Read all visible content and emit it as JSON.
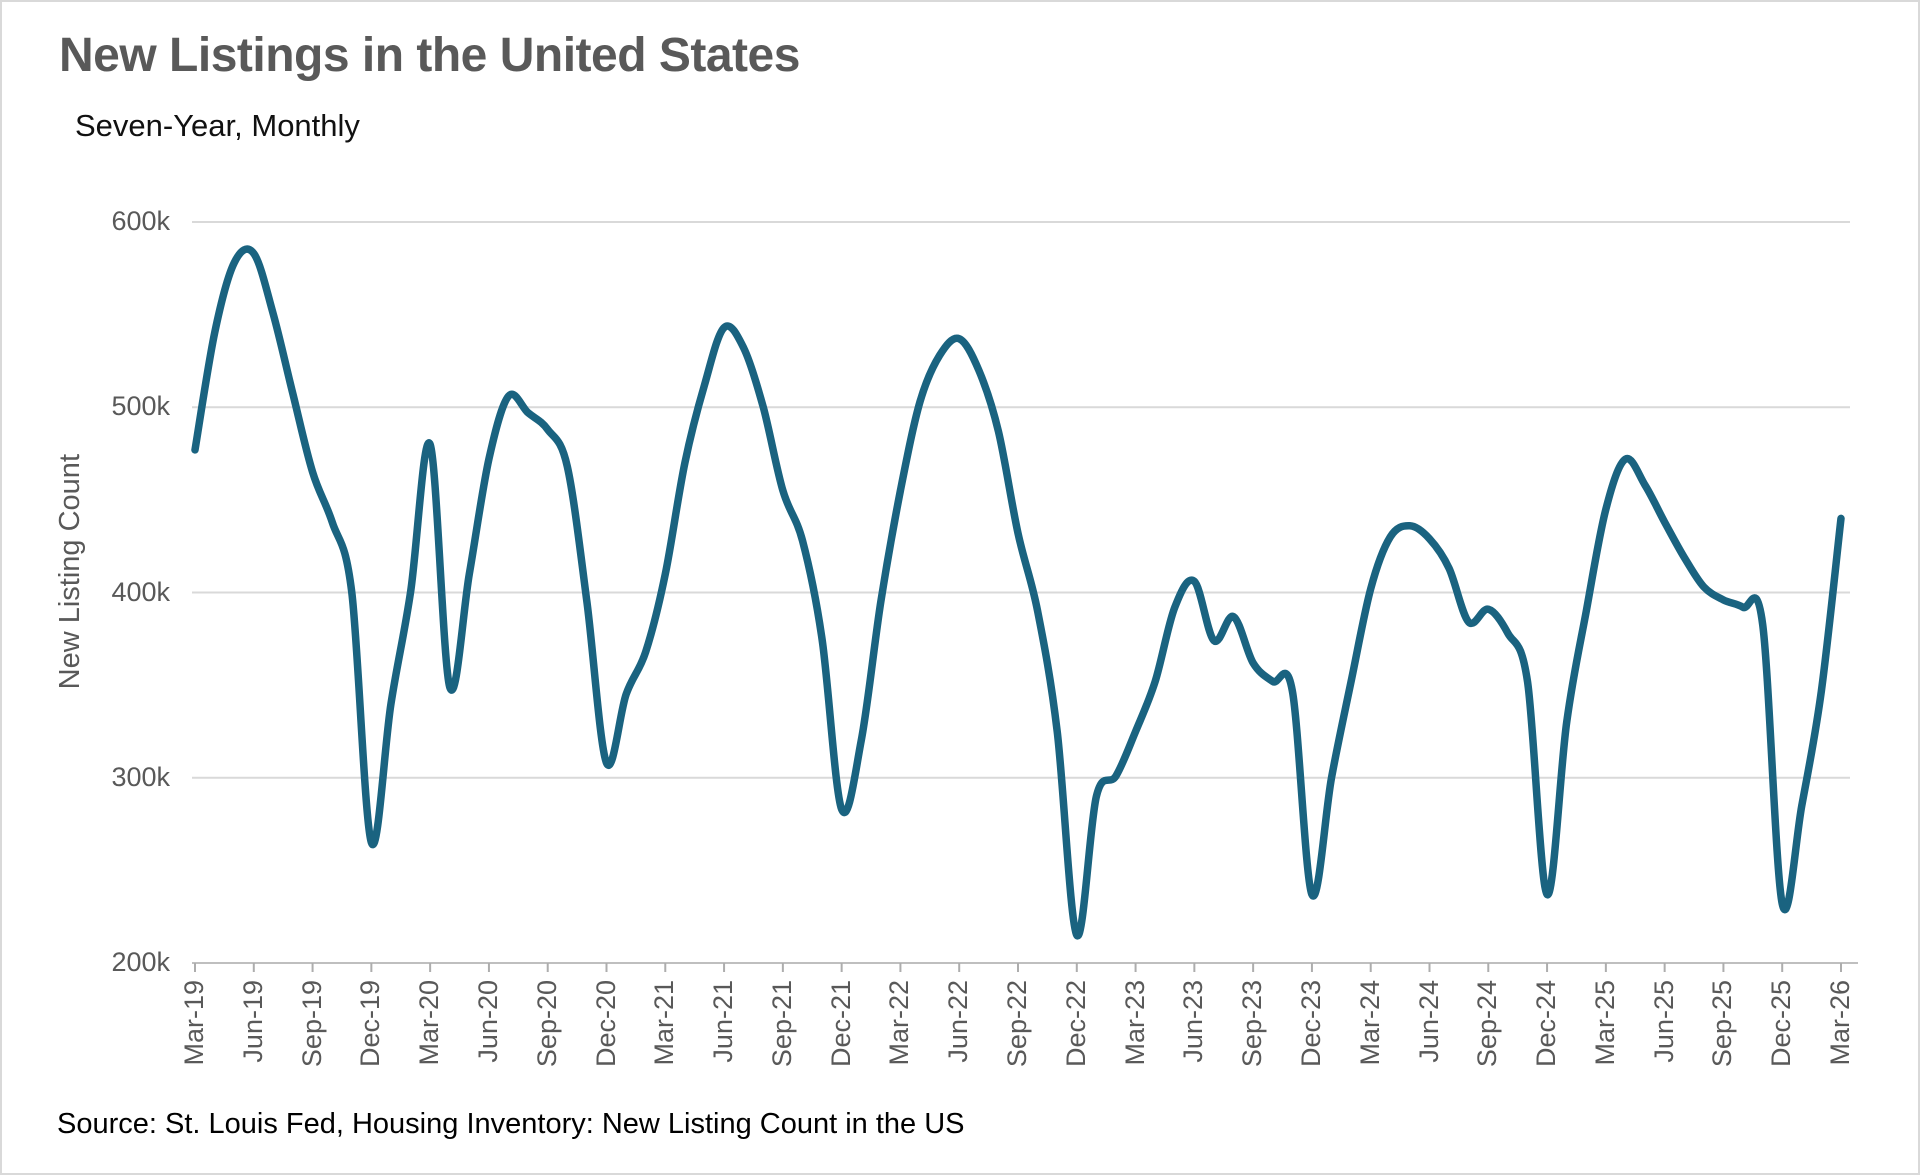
{
  "header": {
    "title": "New Listings in the United States",
    "subtitle": "Seven-Year, Monthly"
  },
  "footer": {
    "source": "Source: St. Louis Fed, Housing Inventory: New Listing Count in the US"
  },
  "chart_data": {
    "type": "line",
    "title": "New Listings in the United States",
    "subtitle": "Seven-Year, Monthly",
    "ylabel": "New Listing Count",
    "ylim": [
      200000,
      620000
    ],
    "grid": "horizontal-only",
    "legend": "none",
    "line_color": "#1A6380",
    "gridline_color": "#D9D9D9",
    "axis_color": "#BFBFBF",
    "tick_color": "#ADADAD",
    "label_color": "#595959",
    "y_tick_labels": [
      "600k",
      "500k",
      "400k",
      "300k",
      "200k"
    ],
    "y_tick_values": [
      600,
      500,
      400,
      300,
      200
    ],
    "x_tick_labels": [
      "Mar-19",
      "Jun-19",
      "Sep-19",
      "Dec-19",
      "Mar-20",
      "Jun-20",
      "Sep-20",
      "Dec-20",
      "Mar-21",
      "Jun-21",
      "Sep-21",
      "Dec-21",
      "Mar-22",
      "Jun-22",
      "Sep-22",
      "Dec-22",
      "Mar-23",
      "Jun-23",
      "Sep-23",
      "Dec-23",
      "Mar-24",
      "Jun-24",
      "Sep-24",
      "Dec-24",
      "Mar-25",
      "Jun-25",
      "Sep-25",
      "Dec-25",
      "Mar-26"
    ],
    "months": [
      "Mar-19",
      "Apr-19",
      "May-19",
      "Jun-19",
      "Jul-19",
      "Aug-19",
      "Sep-19",
      "Oct-19",
      "Nov-19",
      "Dec-19",
      "Jan-20",
      "Feb-20",
      "Mar-20",
      "Apr-20",
      "May-20",
      "Jun-20",
      "Jul-20",
      "Aug-20",
      "Sep-20",
      "Oct-20",
      "Nov-20",
      "Dec-20",
      "Jan-21",
      "Feb-21",
      "Mar-21",
      "Apr-21",
      "May-21",
      "Jun-21",
      "Jul-21",
      "Aug-21",
      "Sep-21",
      "Oct-21",
      "Nov-21",
      "Dec-21",
      "Jan-22",
      "Feb-22",
      "Mar-22",
      "Apr-22",
      "May-22",
      "Jun-22",
      "Jul-22",
      "Aug-22",
      "Sep-22",
      "Oct-22",
      "Nov-22",
      "Dec-22",
      "Jan-23",
      "Feb-23",
      "Mar-23",
      "Apr-23",
      "May-23",
      "Jun-23",
      "Jul-23",
      "Aug-23",
      "Sep-23",
      "Oct-23",
      "Nov-23",
      "Dec-23",
      "Jan-24",
      "Feb-24",
      "Mar-24",
      "Apr-24",
      "May-24",
      "Jun-24",
      "Jul-24",
      "Aug-24",
      "Sep-24",
      "Oct-24",
      "Nov-24",
      "Dec-24",
      "Jan-25",
      "Feb-25",
      "Mar-25",
      "Apr-25",
      "May-25",
      "Jun-25",
      "Jul-25",
      "Aug-25",
      "Sep-25",
      "Oct-25",
      "Nov-25",
      "Dec-25",
      "Jan-26",
      "Feb-26",
      "Mar-26"
    ],
    "values_thousands": [
      477,
      540,
      578,
      583,
      550,
      507,
      465,
      438,
      400,
      265,
      340,
      400,
      480,
      349,
      410,
      472,
      506,
      497,
      488,
      468,
      395,
      308,
      345,
      368,
      410,
      470,
      512,
      543,
      532,
      500,
      455,
      428,
      375,
      283,
      320,
      395,
      455,
      503,
      528,
      537,
      520,
      487,
      432,
      390,
      325,
      215,
      290,
      301,
      325,
      352,
      392,
      406,
      374,
      387,
      362,
      352,
      347,
      237,
      300,
      352,
      402,
      430,
      436,
      429,
      413,
      384,
      391,
      378,
      352,
      237,
      330,
      390,
      445,
      472,
      458,
      438,
      419,
      403,
      396,
      392,
      383,
      232,
      285,
      347,
      440
    ]
  }
}
